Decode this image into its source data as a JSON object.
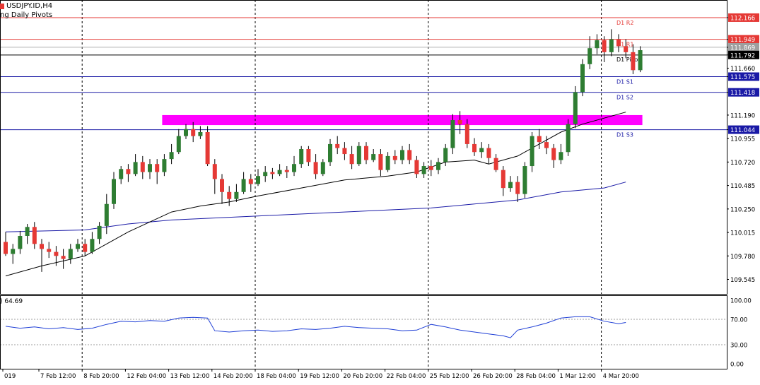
{
  "header": {
    "symbol": "USDJPY.ID,H4",
    "indicator": "ng Daily Pivots"
  },
  "rsi_header": {
    "value_text": ") 64.69"
  },
  "colors": {
    "bull": "#2e7d32",
    "bear": "#e53935",
    "magenta": "#ff00ff",
    "ma_fast": "#000000",
    "ma_slow": "#1a1aa6",
    "rsi": "#1f3fd6",
    "resistance": "#e53935",
    "support": "#1a1aa6",
    "pivot": "#000000"
  },
  "chart_data": [
    {
      "type": "candlestick",
      "title": "USDJPY.ID,H4",
      "ylim": [
        109.4,
        112.3
      ],
      "y_ticks": [
        "112.166",
        "111.949",
        "111.869",
        "111.792",
        "111.660",
        "111.575",
        "111.418",
        "111.190",
        "111.044",
        "110.955",
        "110.720",
        "110.485",
        "110.250",
        "110.015",
        "109.780",
        "109.545"
      ],
      "x_labels": [
        {
          "i": 0,
          "label": "019"
        },
        {
          "i": 5,
          "label": "7 Feb 12:00"
        },
        {
          "i": 11,
          "label": "8 Feb 20:00"
        },
        {
          "i": 17,
          "label": "12 Feb 04:00"
        },
        {
          "i": 23,
          "label": "13 Feb 12:00"
        },
        {
          "i": 29,
          "label": "14 Feb 20:00"
        },
        {
          "i": 35,
          "label": "18 Feb 04:00"
        },
        {
          "i": 41,
          "label": "19 Feb 12:00"
        },
        {
          "i": 47,
          "label": "20 Feb 20:00"
        },
        {
          "i": 53,
          "label": "22 Feb 04:00"
        },
        {
          "i": 59,
          "label": "25 Feb 12:00"
        },
        {
          "i": 65,
          "label": "26 Feb 20:00"
        },
        {
          "i": 71,
          "label": "28 Feb 04:00"
        },
        {
          "i": 77,
          "label": "1 Mar 12:00"
        },
        {
          "i": 83,
          "label": "4 Mar 20:00"
        }
      ],
      "day_separators": [
        11,
        35,
        59,
        83
      ],
      "pivots": [
        {
          "name": "D1 R2",
          "value": 112.166,
          "kind": "resistance"
        },
        {
          "name": "D1 R1",
          "value": 111.949,
          "kind": "resistance"
        },
        {
          "name": "D1 Pivot",
          "value": 111.792,
          "kind": "pivot"
        },
        {
          "name": "D1 S1",
          "value": 111.575,
          "kind": "support"
        },
        {
          "name": "D1 S2",
          "value": 111.418,
          "kind": "support"
        },
        {
          "name": "D1 S3",
          "value": 111.044,
          "kind": "support"
        }
      ],
      "current_price": 111.869,
      "zone": {
        "y1": 111.09,
        "y2": 111.19,
        "i_start": 22,
        "i_end": 88
      },
      "candles": [
        [
          109.92,
          109.8,
          110.02,
          109.78
        ],
        [
          109.8,
          109.85,
          109.9,
          109.7
        ],
        [
          109.85,
          109.98,
          110.03,
          109.8
        ],
        [
          109.98,
          110.07,
          110.1,
          109.9
        ],
        [
          110.07,
          109.9,
          110.12,
          109.85
        ],
        [
          109.9,
          109.85,
          109.95,
          109.62
        ],
        [
          109.85,
          109.82,
          109.92,
          109.76
        ],
        [
          109.82,
          109.78,
          109.88,
          109.68
        ],
        [
          109.78,
          109.75,
          109.85,
          109.65
        ],
        [
          109.75,
          109.85,
          109.9,
          109.7
        ],
        [
          109.85,
          109.9,
          109.95,
          109.82
        ],
        [
          109.9,
          109.82,
          109.95,
          109.78
        ],
        [
          109.82,
          109.95,
          110.02,
          109.8
        ],
        [
          109.95,
          110.08,
          110.12,
          109.9
        ],
        [
          110.08,
          110.3,
          110.4,
          110.0
        ],
        [
          110.3,
          110.55,
          110.62,
          110.25
        ],
        [
          110.55,
          110.65,
          110.68,
          110.5
        ],
        [
          110.65,
          110.6,
          110.7,
          110.52
        ],
        [
          110.6,
          110.72,
          110.8,
          110.58
        ],
        [
          110.72,
          110.62,
          110.78,
          110.55
        ],
        [
          110.62,
          110.7,
          110.75,
          110.55
        ],
        [
          110.7,
          110.62,
          110.75,
          110.5
        ],
        [
          110.62,
          110.75,
          110.8,
          110.58
        ],
        [
          110.75,
          110.82,
          110.9,
          110.7
        ],
        [
          110.82,
          110.98,
          111.05,
          110.8
        ],
        [
          110.98,
          111.05,
          111.1,
          110.95
        ],
        [
          111.05,
          110.98,
          111.12,
          110.92
        ],
        [
          110.98,
          111.02,
          111.08,
          110.95
        ],
        [
          111.02,
          110.7,
          111.08,
          110.68
        ],
        [
          110.7,
          110.55,
          110.75,
          110.4
        ],
        [
          110.55,
          110.42,
          110.6,
          110.3
        ],
        [
          110.42,
          110.35,
          110.48,
          110.28
        ],
        [
          110.35,
          110.42,
          110.5,
          110.32
        ],
        [
          110.42,
          110.55,
          110.62,
          110.4
        ],
        [
          110.55,
          110.5,
          110.6,
          110.42
        ],
        [
          110.5,
          110.58,
          110.65,
          110.48
        ],
        [
          110.58,
          110.62,
          110.68,
          110.52
        ],
        [
          110.62,
          110.6,
          110.66,
          110.55
        ],
        [
          110.6,
          110.64,
          110.7,
          110.58
        ],
        [
          110.64,
          110.62,
          110.68,
          110.56
        ],
        [
          110.62,
          110.7,
          110.78,
          110.58
        ],
        [
          110.7,
          110.85,
          110.88,
          110.66
        ],
        [
          110.85,
          110.72,
          110.88,
          110.68
        ],
        [
          110.72,
          110.6,
          110.8,
          110.55
        ],
        [
          110.6,
          110.72,
          110.75,
          110.58
        ],
        [
          110.72,
          110.9,
          110.95,
          110.68
        ],
        [
          110.9,
          110.86,
          110.98,
          110.8
        ],
        [
          110.86,
          110.8,
          110.92,
          110.74
        ],
        [
          110.8,
          110.7,
          110.88,
          110.65
        ],
        [
          110.7,
          110.88,
          110.92,
          110.68
        ],
        [
          110.88,
          110.74,
          110.92,
          110.7
        ],
        [
          110.74,
          110.8,
          110.85,
          110.72
        ],
        [
          110.8,
          110.64,
          110.85,
          110.58
        ],
        [
          110.64,
          110.78,
          110.82,
          110.62
        ],
        [
          110.78,
          110.74,
          110.84,
          110.7
        ],
        [
          110.74,
          110.84,
          110.88,
          110.7
        ],
        [
          110.84,
          110.74,
          110.9,
          110.7
        ],
        [
          110.74,
          110.6,
          110.78,
          110.56
        ],
        [
          110.6,
          110.68,
          110.72,
          110.56
        ],
        [
          110.68,
          110.64,
          110.74,
          110.58
        ],
        [
          110.64,
          110.72,
          110.76,
          110.6
        ],
        [
          110.72,
          110.86,
          110.9,
          110.68
        ],
        [
          110.86,
          111.14,
          111.2,
          110.8
        ],
        [
          111.14,
          111.1,
          111.23,
          111.0
        ],
        [
          111.1,
          110.9,
          111.15,
          110.86
        ],
        [
          110.9,
          110.82,
          110.96,
          110.78
        ],
        [
          110.82,
          110.86,
          110.92,
          110.76
        ],
        [
          110.86,
          110.76,
          110.9,
          110.7
        ],
        [
          110.76,
          110.64,
          110.8,
          110.62
        ],
        [
          110.64,
          110.46,
          110.68,
          110.38
        ],
        [
          110.46,
          110.52,
          110.58,
          110.42
        ],
        [
          110.52,
          110.4,
          110.58,
          110.32
        ],
        [
          110.4,
          110.68,
          110.72,
          110.36
        ],
        [
          110.68,
          110.98,
          111.02,
          110.62
        ],
        [
          110.98,
          110.92,
          111.05,
          110.85
        ],
        [
          110.92,
          110.86,
          110.98,
          110.8
        ],
        [
          110.86,
          110.74,
          110.9,
          110.66
        ],
        [
          110.74,
          110.82,
          110.9,
          110.7
        ],
        [
          110.82,
          111.1,
          111.15,
          110.78
        ],
        [
          111.1,
          111.42,
          111.48,
          111.06
        ],
        [
          111.42,
          111.7,
          111.75,
          111.38
        ],
        [
          111.7,
          111.86,
          111.98,
          111.65
        ],
        [
          111.86,
          111.94,
          112.0,
          111.8
        ],
        [
          111.94,
          111.82,
          111.98,
          111.72
        ],
        [
          111.82,
          111.95,
          112.05,
          111.78
        ],
        [
          111.95,
          111.88,
          112.0,
          111.82
        ],
        [
          111.88,
          111.82,
          111.95,
          111.76
        ],
        [
          111.82,
          111.64,
          111.9,
          111.6
        ],
        [
          111.64,
          111.84,
          111.88,
          111.62
        ]
      ],
      "ma_fast": [
        [
          0,
          109.58
        ],
        [
          5,
          109.68
        ],
        [
          11,
          109.78
        ],
        [
          17,
          110.02
        ],
        [
          23,
          110.22
        ],
        [
          27,
          110.28
        ],
        [
          31,
          110.32
        ],
        [
          35,
          110.38
        ],
        [
          41,
          110.46
        ],
        [
          47,
          110.54
        ],
        [
          53,
          110.58
        ],
        [
          57,
          110.62
        ],
        [
          61,
          110.72
        ],
        [
          65,
          110.74
        ],
        [
          67,
          110.7
        ],
        [
          71,
          110.78
        ],
        [
          74,
          110.9
        ],
        [
          77,
          111.02
        ],
        [
          80,
          111.1
        ],
        [
          83,
          111.16
        ],
        [
          86,
          111.22
        ]
      ],
      "ma_slow": [
        [
          0,
          110.02
        ],
        [
          11,
          110.04
        ],
        [
          17,
          110.1
        ],
        [
          23,
          110.14
        ],
        [
          35,
          110.18
        ],
        [
          47,
          110.22
        ],
        [
          59,
          110.26
        ],
        [
          65,
          110.3
        ],
        [
          71,
          110.34
        ],
        [
          77,
          110.42
        ],
        [
          83,
          110.46
        ],
        [
          86,
          110.52
        ]
      ],
      "rsi": {
        "ylim": [
          0,
          100
        ],
        "y_ticks": [
          "100.00",
          "70.00",
          "30.00",
          "0.00"
        ],
        "points": [
          [
            0,
            59
          ],
          [
            2,
            56
          ],
          [
            4,
            58
          ],
          [
            6,
            55
          ],
          [
            8,
            57
          ],
          [
            10,
            54
          ],
          [
            12,
            56
          ],
          [
            14,
            62
          ],
          [
            16,
            67
          ],
          [
            18,
            66
          ],
          [
            20,
            68
          ],
          [
            22,
            67
          ],
          [
            24,
            72
          ],
          [
            26,
            73
          ],
          [
            28,
            72
          ],
          [
            29,
            52
          ],
          [
            31,
            50
          ],
          [
            33,
            52
          ],
          [
            35,
            53
          ],
          [
            37,
            51
          ],
          [
            39,
            52
          ],
          [
            41,
            55
          ],
          [
            43,
            54
          ],
          [
            45,
            56
          ],
          [
            47,
            59
          ],
          [
            49,
            57
          ],
          [
            51,
            56
          ],
          [
            53,
            55
          ],
          [
            55,
            52
          ],
          [
            57,
            53
          ],
          [
            59,
            62
          ],
          [
            61,
            58
          ],
          [
            63,
            53
          ],
          [
            65,
            50
          ],
          [
            67,
            47
          ],
          [
            69,
            44
          ],
          [
            70,
            41
          ],
          [
            71,
            53
          ],
          [
            73,
            58
          ],
          [
            75,
            64
          ],
          [
            77,
            72
          ],
          [
            79,
            74
          ],
          [
            81,
            74
          ],
          [
            83,
            67
          ],
          [
            85,
            63
          ],
          [
            86,
            65
          ]
        ]
      }
    }
  ]
}
